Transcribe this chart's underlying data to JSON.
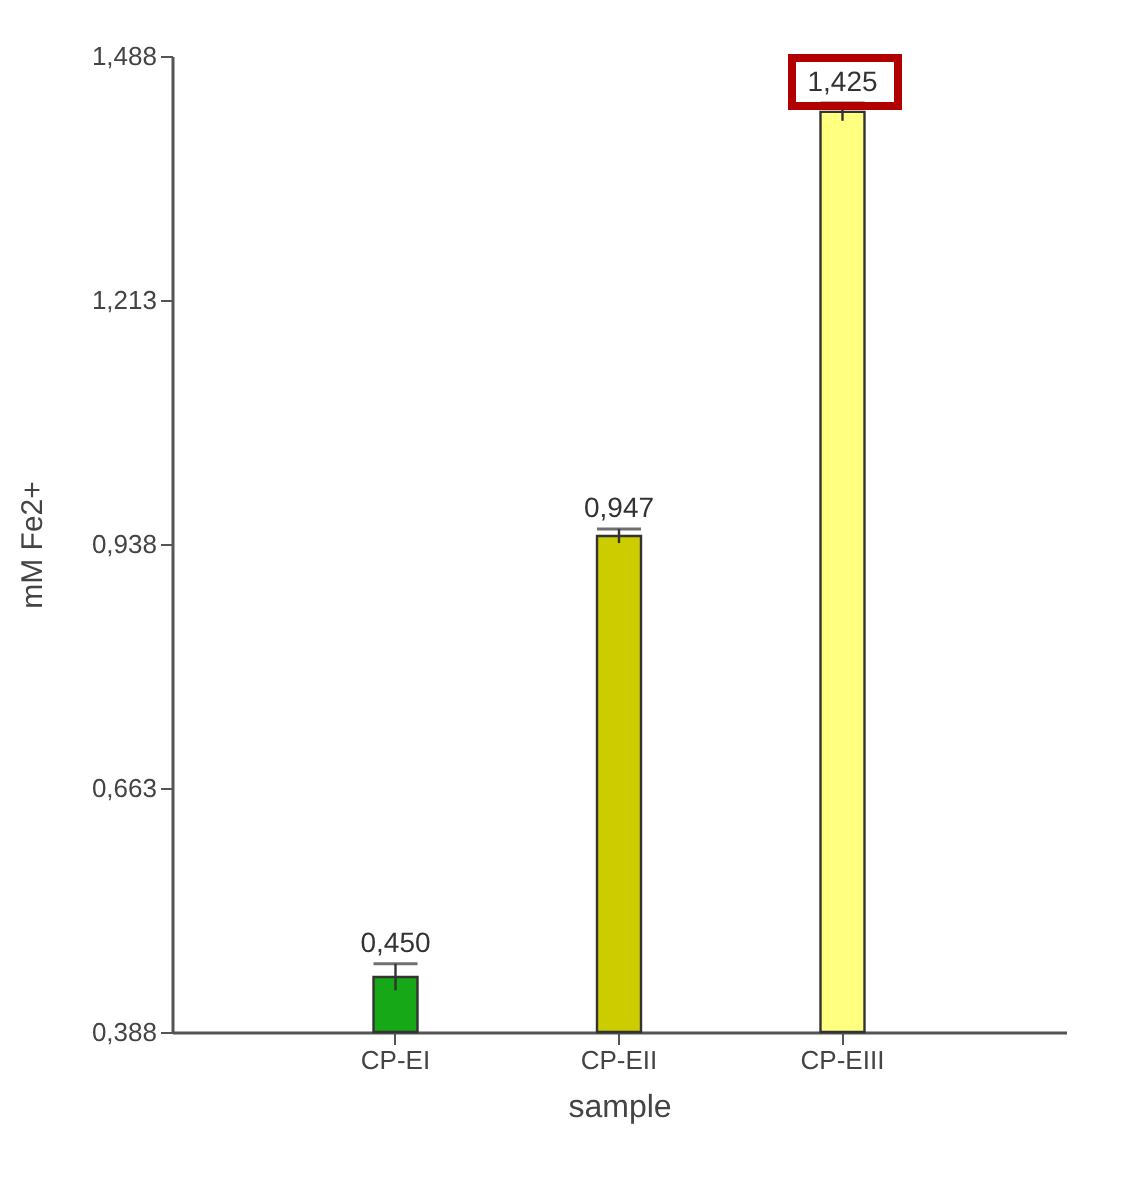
{
  "chart_data": {
    "type": "bar",
    "xlabel": "sample",
    "ylabel": "mM Fe2+",
    "categories": [
      "CP-EI",
      "CP-EII",
      "CP-EIII"
    ],
    "values": [
      0.45,
      0.947,
      1.425
    ],
    "colors": [
      "#16a816",
      "#cccc00",
      "#ffff80"
    ],
    "errors": [
      0.015,
      0.008,
      0.01
    ],
    "value_labels": [
      "0,450",
      "0,947",
      "1,425"
    ],
    "ylim": [
      0.388,
      1.488
    ],
    "yticks": [
      {
        "value": 0.388,
        "label": "0,388"
      },
      {
        "value": 0.663,
        "label": "0,663"
      },
      {
        "value": 0.938,
        "label": "0,938"
      },
      {
        "value": 1.213,
        "label": "1,213"
      },
      {
        "value": 1.488,
        "label": "1,488"
      }
    ],
    "grid": false
  }
}
